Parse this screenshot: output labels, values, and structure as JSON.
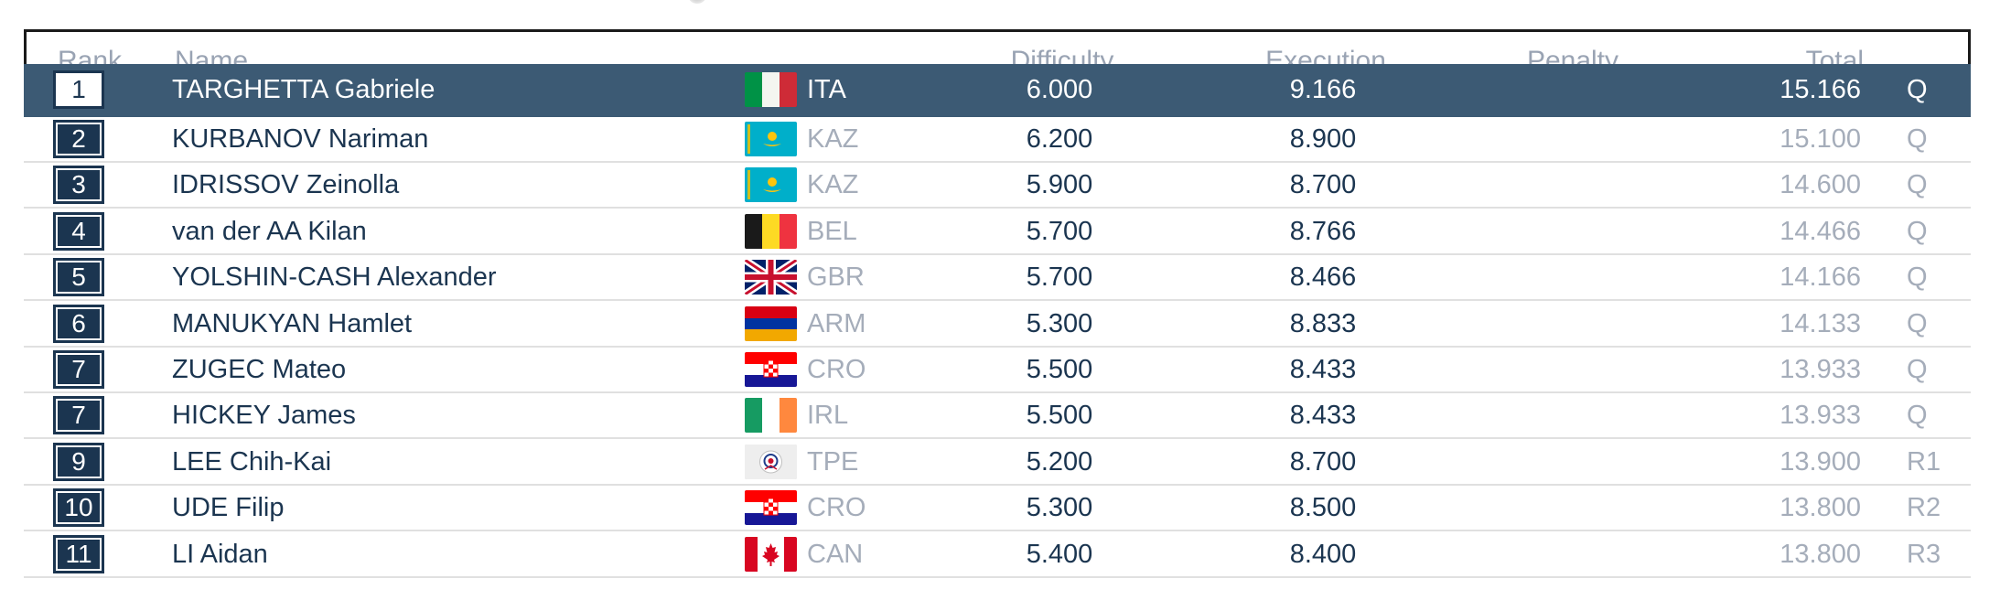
{
  "header": {
    "rank": "Rank",
    "name": "Name",
    "difficulty": "Difficulty",
    "execution": "Execution",
    "penalty": "Penalty",
    "total": "Total"
  },
  "rows": [
    {
      "rank": "1",
      "name": "TARGHETTA Gabriele",
      "flag": "flag-italy-icon",
      "code": "ITA",
      "difficulty": "6.000",
      "execution": "9.166",
      "total": "15.166",
      "qualification": "Q",
      "selected": true
    },
    {
      "rank": "2",
      "name": "KURBANOV Nariman",
      "flag": "flag-kazakhstan-icon",
      "code": "KAZ",
      "difficulty": "6.200",
      "execution": "8.900",
      "total": "15.100",
      "qualification": "Q",
      "selected": false
    },
    {
      "rank": "3",
      "name": "IDRISSOV Zeinolla",
      "flag": "flag-kazakhstan-icon",
      "code": "KAZ",
      "difficulty": "5.900",
      "execution": "8.700",
      "total": "14.600",
      "qualification": "Q",
      "selected": false
    },
    {
      "rank": "4",
      "name": "van der AA Kilan",
      "flag": "flag-belgium-icon",
      "code": "BEL",
      "difficulty": "5.700",
      "execution": "8.766",
      "total": "14.466",
      "qualification": "Q",
      "selected": false
    },
    {
      "rank": "5",
      "name": "YOLSHIN-CASH Alexander",
      "flag": "flag-great-britain-icon",
      "code": "GBR",
      "difficulty": "5.700",
      "execution": "8.466",
      "total": "14.166",
      "qualification": "Q",
      "selected": false
    },
    {
      "rank": "6",
      "name": "MANUKYAN Hamlet",
      "flag": "flag-armenia-icon",
      "code": "ARM",
      "difficulty": "5.300",
      "execution": "8.833",
      "total": "14.133",
      "qualification": "Q",
      "selected": false
    },
    {
      "rank": "7",
      "name": "ZUGEC Mateo",
      "flag": "flag-croatia-icon",
      "code": "CRO",
      "difficulty": "5.500",
      "execution": "8.433",
      "total": "13.933",
      "qualification": "Q",
      "selected": false
    },
    {
      "rank": "7",
      "name": "HICKEY James",
      "flag": "flag-ireland-icon",
      "code": "IRL",
      "difficulty": "5.500",
      "execution": "8.433",
      "total": "13.933",
      "qualification": "Q",
      "selected": false
    },
    {
      "rank": "9",
      "name": "LEE Chih-Kai",
      "flag": "flag-chinese-taipei-icon",
      "code": "TPE",
      "difficulty": "5.200",
      "execution": "8.700",
      "total": "13.900",
      "qualification": "R1",
      "selected": false
    },
    {
      "rank": "10",
      "name": "UDE Filip",
      "flag": "flag-croatia-icon",
      "code": "CRO",
      "difficulty": "5.300",
      "execution": "8.500",
      "total": "13.800",
      "qualification": "R2",
      "selected": false
    },
    {
      "rank": "11",
      "name": "LI Aidan",
      "flag": "flag-canada-icon",
      "code": "CAN",
      "difficulty": "5.400",
      "execution": "8.400",
      "total": "13.800",
      "qualification": "R3",
      "selected": false
    }
  ]
}
